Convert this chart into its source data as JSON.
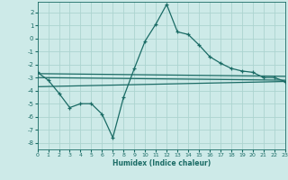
{
  "title": "",
  "xlabel": "Humidex (Indice chaleur)",
  "ylabel": "",
  "background_color": "#cdeae8",
  "grid_color": "#acd4d0",
  "line_color": "#1a6b65",
  "xlim": [
    0,
    23
  ],
  "ylim": [
    -8.5,
    2.8
  ],
  "xticks": [
    0,
    1,
    2,
    3,
    4,
    5,
    6,
    7,
    8,
    9,
    10,
    11,
    12,
    13,
    14,
    15,
    16,
    17,
    18,
    19,
    20,
    21,
    22,
    23
  ],
  "yticks": [
    -8,
    -7,
    -6,
    -5,
    -4,
    -3,
    -2,
    -1,
    0,
    1,
    2
  ],
  "main_x": [
    0,
    1,
    2,
    3,
    4,
    5,
    6,
    7,
    8,
    9,
    10,
    11,
    12,
    13,
    14,
    15,
    16,
    17,
    18,
    19,
    20,
    21,
    22,
    23
  ],
  "main_y": [
    -2.6,
    -3.2,
    -4.2,
    -5.3,
    -5.0,
    -5.0,
    -5.8,
    -7.6,
    -4.5,
    -2.3,
    -0.2,
    1.1,
    2.6,
    0.5,
    0.3,
    -0.5,
    -1.4,
    -1.9,
    -2.3,
    -2.5,
    -2.6,
    -3.0,
    -3.0,
    -3.3
  ],
  "line1_x": [
    0,
    23
  ],
  "line1_y": [
    -2.7,
    -2.9
  ],
  "line2_x": [
    0,
    23
  ],
  "line2_y": [
    -3.0,
    -3.2
  ],
  "line3_x": [
    0,
    23
  ],
  "line3_y": [
    -3.7,
    -3.3
  ]
}
